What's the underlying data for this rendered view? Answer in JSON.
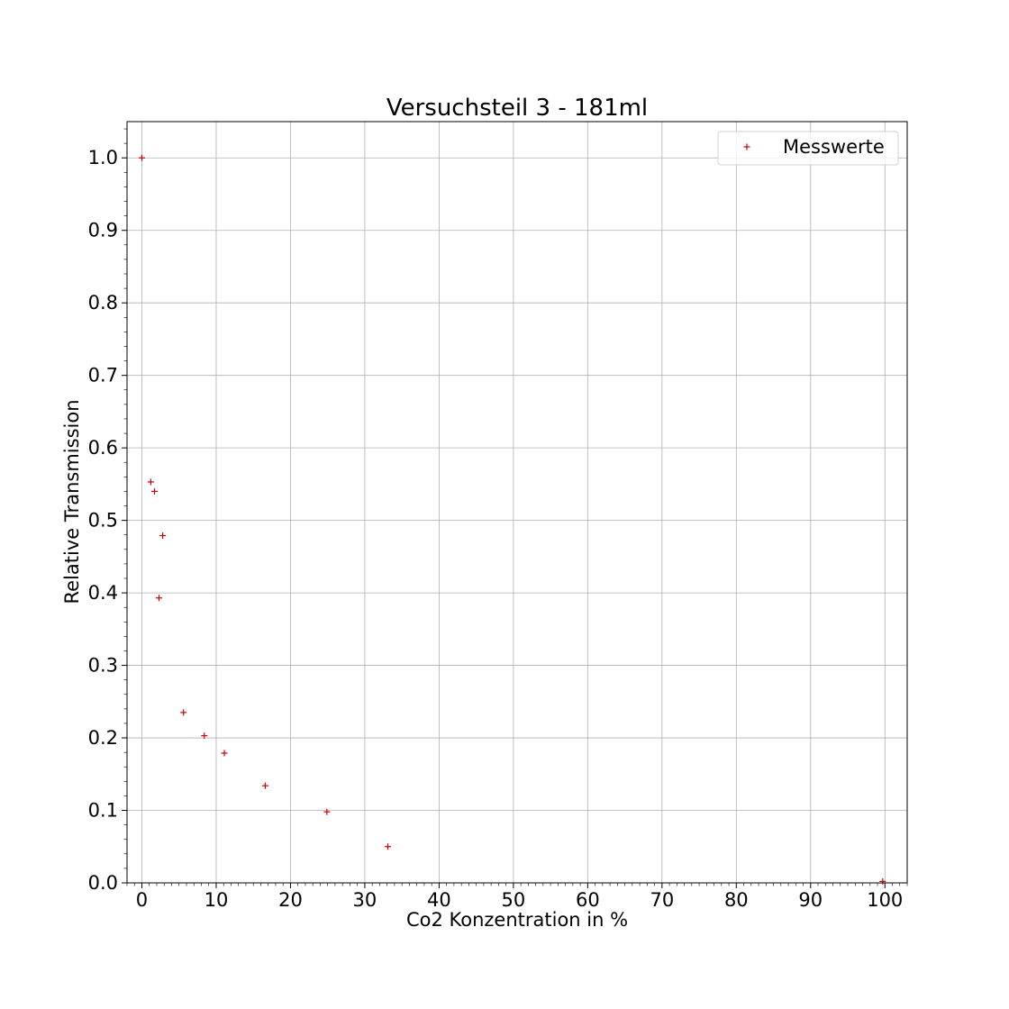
{
  "chart_data": {
    "type": "scatter",
    "title": "Versuchsteil 3 - 181ml",
    "xlabel": "Co2 Konzentration in %",
    "ylabel": "Relative Transmission",
    "xlim": [
      -2,
      103
    ],
    "ylim": [
      0,
      1.05
    ],
    "x_ticks": [
      0,
      10,
      20,
      30,
      40,
      50,
      60,
      70,
      80,
      90,
      100
    ],
    "y_ticks": [
      0.0,
      0.1,
      0.2,
      0.3,
      0.4,
      0.5,
      0.6,
      0.7,
      0.8,
      0.9,
      1.0
    ],
    "x_tick_labels": [
      "0",
      "10",
      "20",
      "30",
      "40",
      "50",
      "60",
      "70",
      "80",
      "90",
      "100"
    ],
    "y_tick_labels": [
      "0.0",
      "0.1",
      "0.2",
      "0.3",
      "0.4",
      "0.5",
      "0.6",
      "0.7",
      "0.8",
      "0.9",
      "1.0"
    ],
    "grid": true,
    "legend_position": "top-right",
    "series": [
      {
        "name": "Messwerte",
        "color": "#cc0000",
        "marker": "plus",
        "points": [
          {
            "x": 0,
            "y": 1.0
          },
          {
            "x": 1.2,
            "y": 0.553
          },
          {
            "x": 1.7,
            "y": 0.54
          },
          {
            "x": 2.8,
            "y": 0.479
          },
          {
            "x": 2.3,
            "y": 0.393
          },
          {
            "x": 5.6,
            "y": 0.235
          },
          {
            "x": 8.4,
            "y": 0.203
          },
          {
            "x": 11.1,
            "y": 0.179
          },
          {
            "x": 16.6,
            "y": 0.134
          },
          {
            "x": 24.9,
            "y": 0.098
          },
          {
            "x": 33.1,
            "y": 0.05
          },
          {
            "x": 99.7,
            "y": 0.002
          }
        ]
      }
    ]
  }
}
